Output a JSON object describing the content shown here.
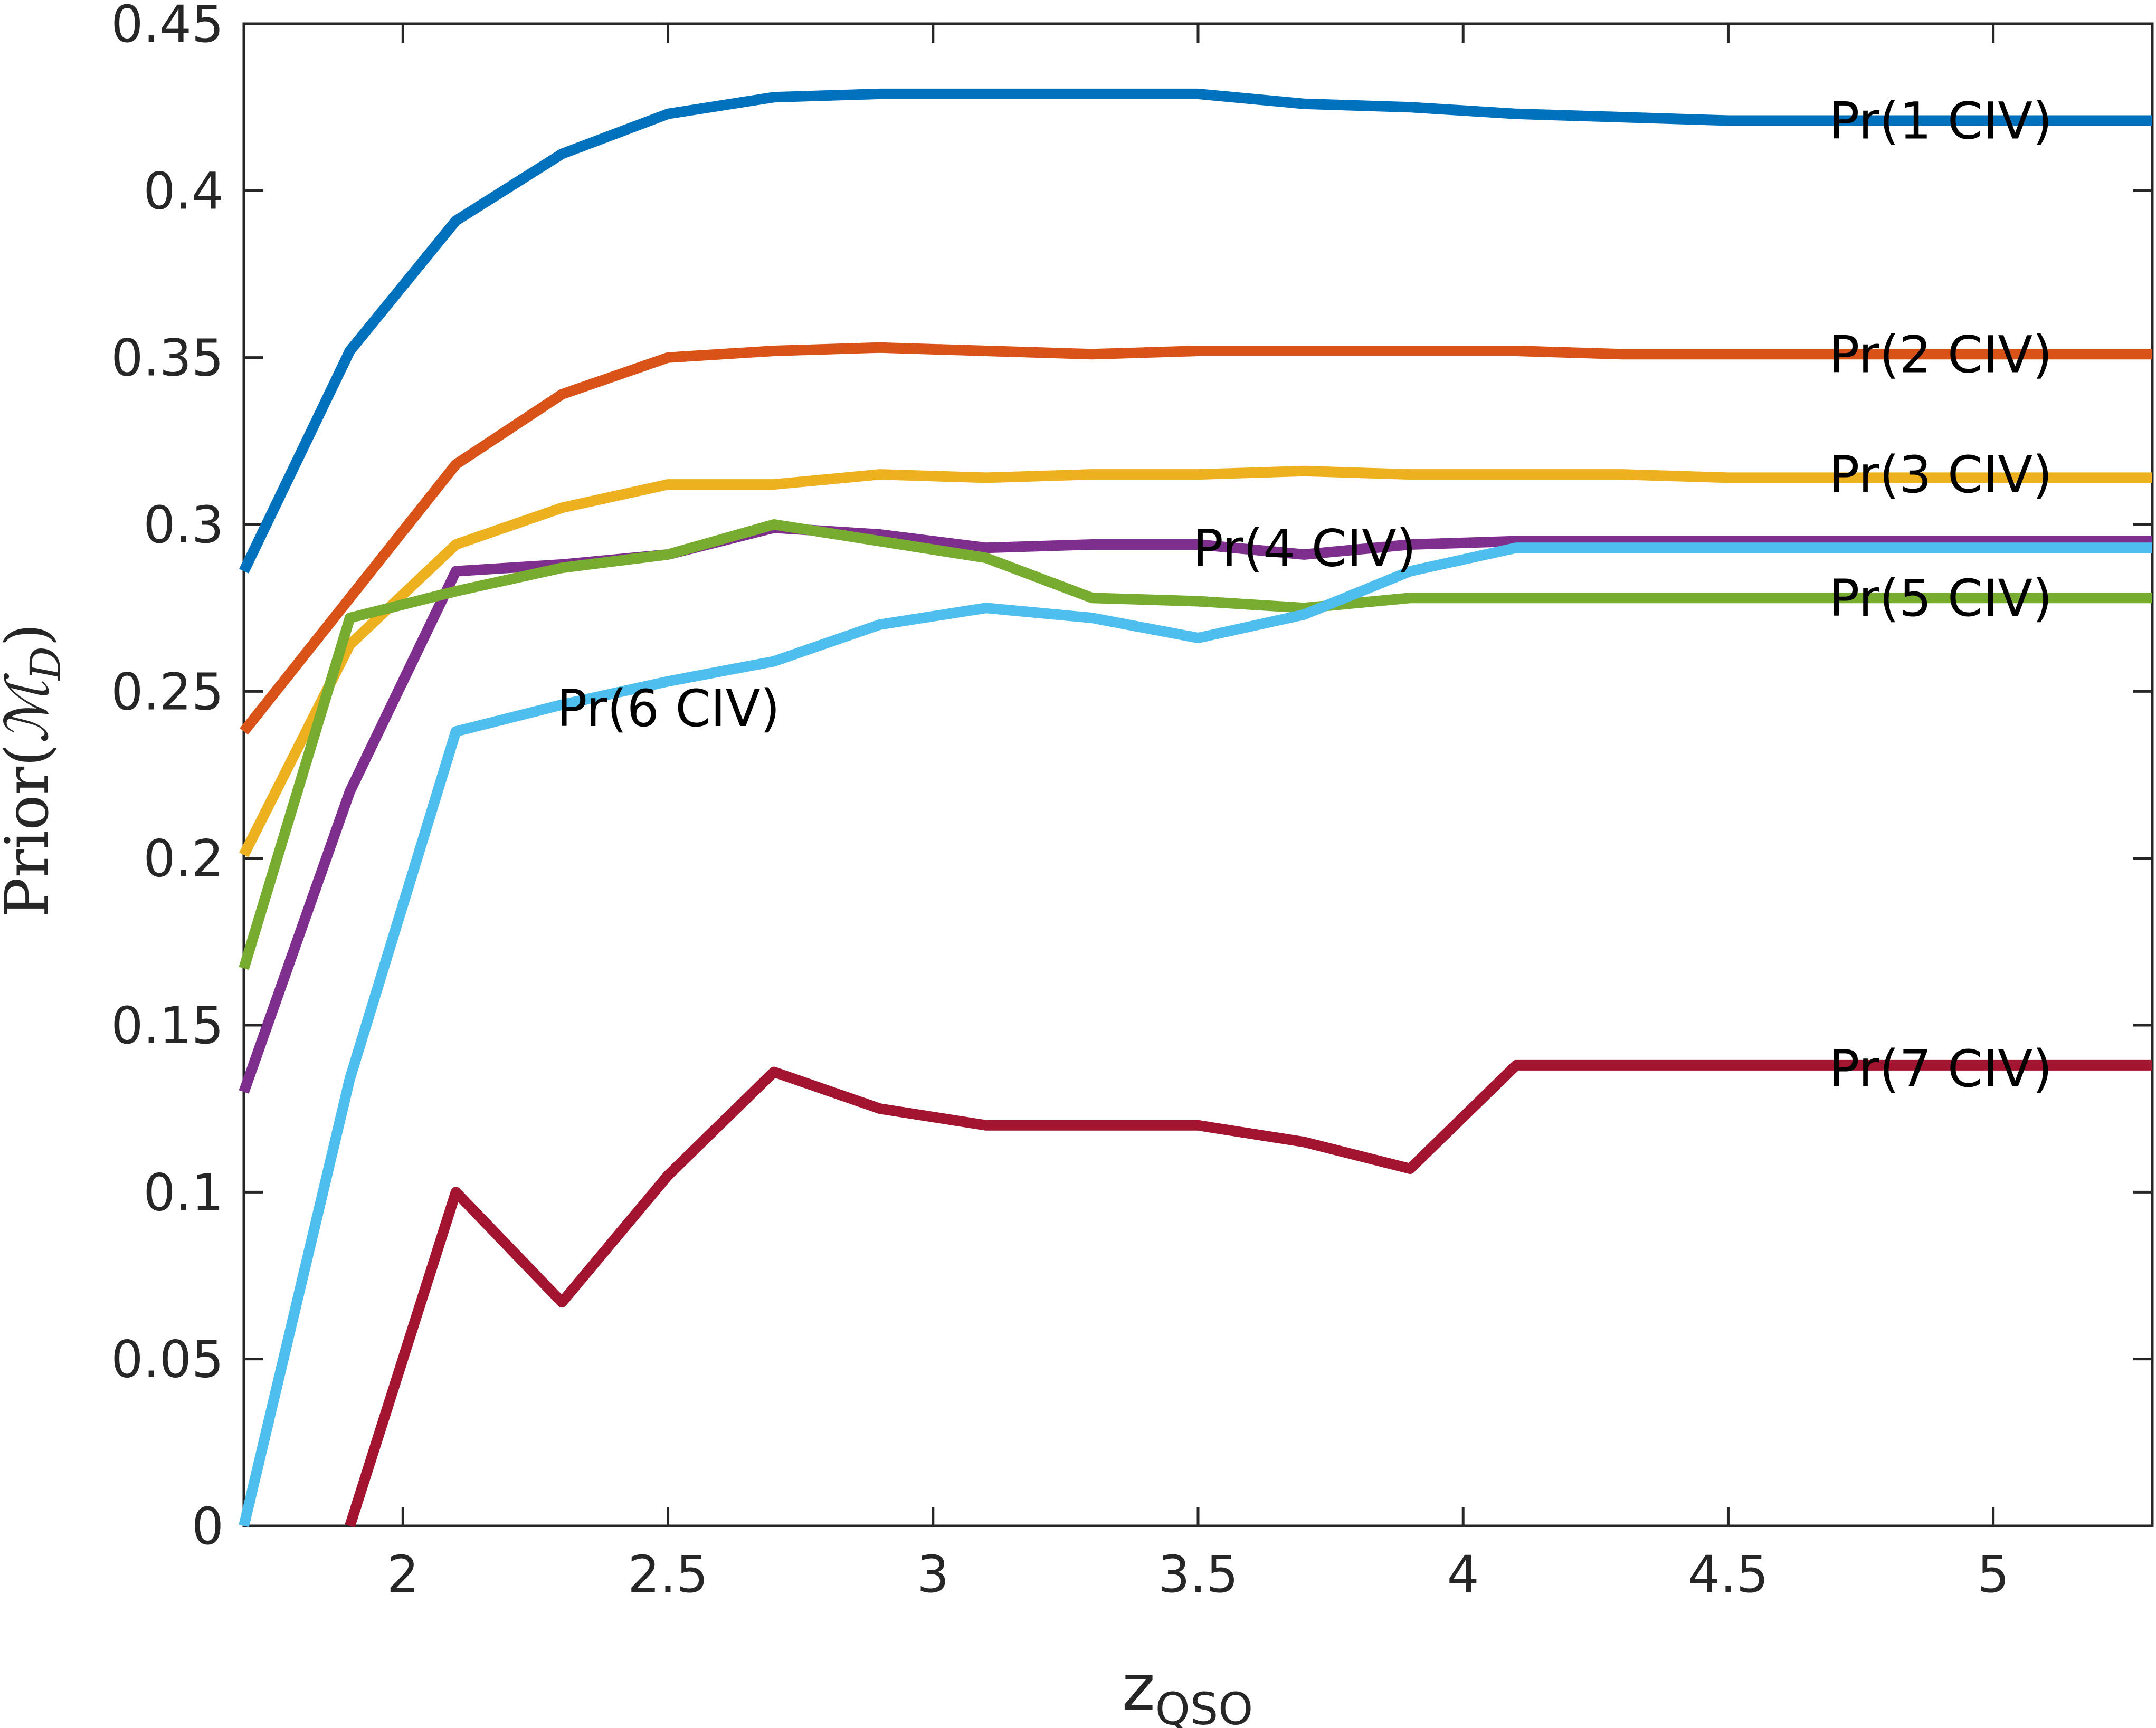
{
  "chart_data": {
    "type": "line",
    "title": "",
    "xlabel_main": "z",
    "xlabel_sub": "QSO",
    "ylabel_prefix": "Prior(",
    "ylabel_symbol": "ℳ",
    "ylabel_sub": "D",
    "ylabel_suffix": ")",
    "xlim": [
      1.7,
      5.3
    ],
    "ylim": [
      0,
      0.45
    ],
    "xticks": [
      2,
      2.5,
      3,
      3.5,
      4,
      4.5,
      5
    ],
    "xtick_labels": [
      "2",
      "2.5",
      "3",
      "3.5",
      "4",
      "4.5",
      "5"
    ],
    "yticks": [
      0,
      0.05,
      0.1,
      0.15,
      0.2,
      0.25,
      0.3,
      0.35,
      0.4,
      0.45
    ],
    "ytick_labels": [
      "0",
      "0.05",
      "0.1",
      "0.15",
      "0.2",
      "0.25",
      "0.3",
      "0.35",
      "0.4",
      "0.45"
    ],
    "grid": false,
    "series": [
      {
        "name": "Pr(1 CIV)",
        "color": "#0072BD",
        "x": [
          1.7,
          1.9,
          2.1,
          2.3,
          2.5,
          2.7,
          2.9,
          3.1,
          3.3,
          3.5,
          3.7,
          3.9,
          4.1,
          4.3,
          4.5,
          4.7,
          4.9,
          5.1,
          5.3
        ],
        "y": [
          0.286,
          0.352,
          0.391,
          0.411,
          0.423,
          0.428,
          0.429,
          0.429,
          0.429,
          0.429,
          0.426,
          0.425,
          0.423,
          0.422,
          0.421,
          0.421,
          0.421,
          0.421,
          0.421
        ]
      },
      {
        "name": "Pr(2 CIV)",
        "color": "#D95319",
        "x": [
          1.7,
          1.9,
          2.1,
          2.3,
          2.5,
          2.7,
          2.9,
          3.1,
          3.3,
          3.5,
          3.7,
          3.9,
          4.1,
          4.3,
          4.5,
          4.7,
          4.9,
          5.1,
          5.3
        ],
        "y": [
          0.238,
          0.278,
          0.318,
          0.339,
          0.35,
          0.352,
          0.353,
          0.352,
          0.351,
          0.352,
          0.352,
          0.352,
          0.352,
          0.351,
          0.351,
          0.351,
          0.351,
          0.351,
          0.351
        ]
      },
      {
        "name": "Pr(3 CIV)",
        "color": "#EDB120",
        "x": [
          1.7,
          1.9,
          2.1,
          2.3,
          2.5,
          2.7,
          2.9,
          3.1,
          3.3,
          3.5,
          3.7,
          3.9,
          4.1,
          4.3,
          4.5,
          4.7,
          4.9,
          5.1,
          5.3
        ],
        "y": [
          0.201,
          0.264,
          0.294,
          0.305,
          0.312,
          0.312,
          0.315,
          0.314,
          0.315,
          0.315,
          0.316,
          0.315,
          0.315,
          0.315,
          0.314,
          0.314,
          0.314,
          0.314,
          0.314
        ]
      },
      {
        "name": "Pr(4 CIV)",
        "color": "#7E2F8E",
        "x": [
          1.7,
          1.9,
          2.1,
          2.3,
          2.5,
          2.7,
          2.9,
          3.1,
          3.3,
          3.5,
          3.7,
          3.9,
          4.1,
          4.3,
          4.5,
          4.7,
          4.9,
          5.1,
          5.3
        ],
        "y": [
          0.13,
          0.22,
          0.286,
          0.288,
          0.291,
          0.299,
          0.297,
          0.293,
          0.294,
          0.294,
          0.291,
          0.294,
          0.295,
          0.295,
          0.295,
          0.295,
          0.295,
          0.295,
          0.295
        ]
      },
      {
        "name": "Pr(5 CIV)",
        "color": "#77AC30",
        "x": [
          1.7,
          1.9,
          2.1,
          2.3,
          2.5,
          2.7,
          2.9,
          3.1,
          3.3,
          3.5,
          3.7,
          3.9,
          4.1,
          4.3,
          4.5,
          4.7,
          4.9,
          5.1,
          5.3
        ],
        "y": [
          0.167,
          0.272,
          0.28,
          0.287,
          0.291,
          0.3,
          0.295,
          0.29,
          0.278,
          0.277,
          0.275,
          0.278,
          0.278,
          0.278,
          0.278,
          0.278,
          0.278,
          0.278,
          0.278
        ]
      },
      {
        "name": "Pr(6 CIV)",
        "color": "#4DBEEE",
        "x": [
          1.7,
          1.9,
          2.1,
          2.3,
          2.5,
          2.7,
          2.9,
          3.1,
          3.3,
          3.5,
          3.7,
          3.9,
          4.1,
          4.3,
          4.5,
          4.7,
          4.9,
          5.1,
          5.3
        ],
        "y": [
          0.0,
          0.134,
          0.238,
          0.246,
          0.253,
          0.259,
          0.27,
          0.275,
          0.272,
          0.266,
          0.273,
          0.286,
          0.293,
          0.293,
          0.293,
          0.293,
          0.293,
          0.293,
          0.293
        ]
      },
      {
        "name": "Pr(7 CIV)",
        "color": "#A2142F",
        "x": [
          1.9,
          2.1,
          2.3,
          2.5,
          2.7,
          2.9,
          3.1,
          3.3,
          3.5,
          3.7,
          3.9,
          4.1,
          4.3,
          4.5,
          4.7,
          4.9,
          5.1,
          5.3
        ],
        "y": [
          0.0,
          0.1,
          0.067,
          0.105,
          0.136,
          0.125,
          0.12,
          0.12,
          0.12,
          0.115,
          0.107,
          0.138,
          0.138,
          0.138,
          0.138,
          0.138,
          0.138,
          0.138
        ]
      }
    ],
    "annotations": [
      {
        "text": "Pr(1 CIV)",
        "x": 4.7,
        "y": 0.421
      },
      {
        "text": "Pr(2 CIV)",
        "x": 4.7,
        "y": 0.351
      },
      {
        "text": "Pr(3 CIV)",
        "x": 4.7,
        "y": 0.315
      },
      {
        "text": "Pr(4 CIV)",
        "x": 3.5,
        "y": 0.293
      },
      {
        "text": "Pr(5 CIV)",
        "x": 4.7,
        "y": 0.278
      },
      {
        "text": "Pr(6 CIV)",
        "x": 2.3,
        "y": 0.245
      },
      {
        "text": "Pr(7 CIV)",
        "x": 4.7,
        "y": 0.137
      }
    ]
  }
}
